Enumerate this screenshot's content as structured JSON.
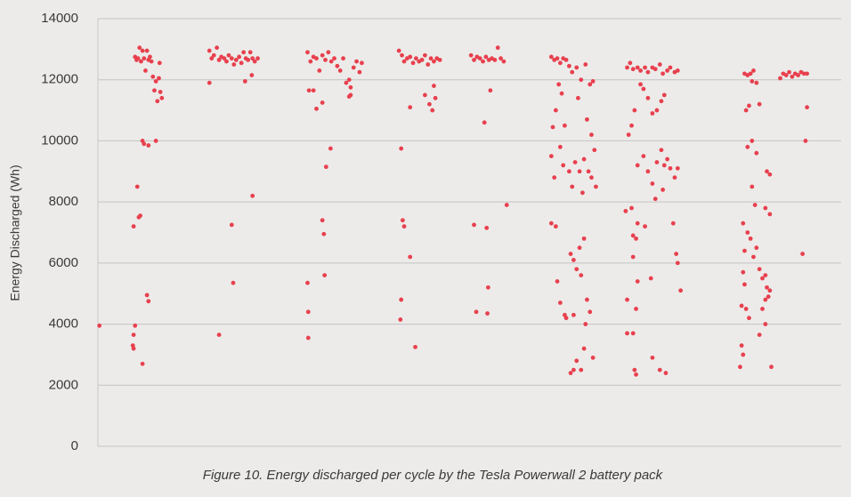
{
  "chart_data": {
    "type": "scatter",
    "y_label": "Energy Discharged (Wh)",
    "caption": "Figure 10. Energy discharged per cycle by the Tesla Powerwall 2 battery pack",
    "color": "#e8404e",
    "grid": true,
    "xlim": [
      0,
      1000
    ],
    "ylim": [
      0,
      14000
    ],
    "yticks": [
      0,
      2000,
      4000,
      6000,
      8000,
      10000,
      12000,
      14000
    ],
    "x": [
      2,
      50,
      52,
      54,
      56,
      58,
      60,
      62,
      64,
      66,
      68,
      70,
      72,
      74,
      76,
      78,
      80,
      82,
      84,
      86,
      83,
      60,
      62,
      68,
      78,
      53,
      55,
      57,
      48,
      66,
      68,
      50,
      48,
      47,
      48,
      60,
      150,
      153,
      156,
      160,
      163,
      166,
      170,
      173,
      176,
      180,
      183,
      186,
      190,
      193,
      196,
      199,
      202,
      205,
      208,
      211,
      215,
      150,
      198,
      207,
      180,
      163,
      182,
      208,
      282,
      286,
      290,
      294,
      298,
      302,
      306,
      310,
      314,
      318,
      322,
      326,
      330,
      334,
      338,
      340,
      344,
      348,
      352,
      355,
      284,
      290,
      294,
      302,
      338,
      340,
      313,
      307,
      302,
      304,
      305,
      282,
      283,
      283,
      405,
      409,
      412,
      416,
      420,
      424,
      428,
      432,
      436,
      440,
      444,
      448,
      452,
      456,
      460,
      420,
      440,
      446,
      450,
      452,
      454,
      408,
      410,
      412,
      420,
      408,
      407,
      427,
      502,
      506,
      510,
      514,
      518,
      522,
      526,
      530,
      534,
      538,
      542,
      546,
      520,
      528,
      550,
      506,
      523,
      525,
      509,
      524,
      610,
      614,
      618,
      622,
      626,
      630,
      634,
      638,
      644,
      650,
      656,
      662,
      666,
      612,
      616,
      620,
      624,
      628,
      646,
      658,
      664,
      668,
      610,
      614,
      622,
      626,
      634,
      638,
      642,
      648,
      652,
      654,
      660,
      664,
      670,
      610,
      616,
      618,
      622,
      628,
      636,
      640,
      644,
      650,
      654,
      658,
      662,
      640,
      656,
      636,
      640,
      644,
      650,
      654,
      666,
      630,
      648,
      712,
      716,
      720,
      726,
      730,
      736,
      740,
      746,
      750,
      756,
      760,
      766,
      770,
      776,
      780,
      714,
      718,
      722,
      730,
      734,
      740,
      746,
      752,
      758,
      762,
      726,
      734,
      740,
      746,
      752,
      758,
      762,
      766,
      770,
      776,
      750,
      760,
      780,
      710,
      718,
      726,
      736,
      720,
      724,
      720,
      726,
      744,
      774,
      778,
      780,
      784,
      712,
      724,
      712,
      720,
      722,
      724,
      746,
      756,
      764,
      870,
      874,
      878,
      882,
      886,
      918,
      922,
      926,
      930,
      934,
      938,
      942,
      946,
      950,
      954,
      880,
      872,
      876,
      880,
      890,
      874,
      886,
      900,
      904,
      880,
      884,
      898,
      904,
      868,
      874,
      878,
      886,
      870,
      882,
      890,
      894,
      898,
      900,
      904,
      898,
      902,
      868,
      870,
      872,
      876,
      866,
      894,
      898,
      890,
      868,
      866,
      864,
      906,
      952,
      954,
      948
    ],
    "values": [
      3950,
      12750,
      12650,
      12700,
      13050,
      12600,
      12950,
      12700,
      12300,
      12950,
      12650,
      12750,
      12600,
      12100,
      11650,
      11950,
      11300,
      12050,
      11600,
      11400,
      12550,
      10000,
      9900,
      9850,
      10000,
      8500,
      7500,
      7550,
      7200,
      4950,
      4750,
      3950,
      3650,
      3300,
      3200,
      2700,
      12950,
      12700,
      12800,
      13050,
      12650,
      12750,
      12700,
      12600,
      12800,
      12700,
      12500,
      12650,
      12750,
      12550,
      12900,
      12700,
      12650,
      12900,
      12700,
      12600,
      12700,
      11900,
      11950,
      12150,
      7250,
      3650,
      5350,
      8200,
      12900,
      12600,
      12750,
      12700,
      12300,
      12800,
      12650,
      12900,
      12600,
      12700,
      12450,
      12300,
      12700,
      11900,
      11450,
      11750,
      12400,
      12600,
      12250,
      12550,
      11650,
      11650,
      11050,
      11250,
      12000,
      11500,
      9750,
      9150,
      7400,
      6950,
      5600,
      5350,
      4400,
      3550,
      12950,
      12800,
      12600,
      12700,
      12750,
      12550,
      12700,
      12600,
      12650,
      12800,
      12500,
      12700,
      12600,
      12700,
      12650,
      11100,
      11500,
      11200,
      11000,
      11800,
      11400,
      9750,
      7400,
      7200,
      6200,
      4800,
      4150,
      3250,
      12800,
      12650,
      12750,
      12700,
      12600,
      12750,
      12650,
      12700,
      12650,
      13050,
      12700,
      12600,
      10600,
      11650,
      7900,
      7250,
      7150,
      5200,
      4400,
      4350,
      12750,
      12650,
      12700,
      12550,
      12700,
      12650,
      12450,
      12250,
      12400,
      12000,
      12500,
      11850,
      11950,
      10450,
      11000,
      11850,
      11550,
      10500,
      11400,
      10700,
      10200,
      9700,
      9500,
      8800,
      9800,
      9200,
      9000,
      8500,
      9300,
      9000,
      8300,
      9400,
      9000,
      8800,
      8500,
      7300,
      7200,
      5400,
      4700,
      4300,
      6300,
      6100,
      5800,
      5600,
      6800,
      4800,
      4400,
      4300,
      4000,
      2400,
      2500,
      2800,
      2500,
      3200,
      2900,
      4200,
      6500,
      12400,
      12550,
      12350,
      12400,
      12300,
      12400,
      12250,
      12400,
      12350,
      12500,
      12200,
      12300,
      12400,
      12250,
      12300,
      10200,
      10500,
      11000,
      11850,
      11700,
      11400,
      10900,
      11000,
      11300,
      11500,
      9200,
      9500,
      9000,
      8600,
      9300,
      9700,
      9200,
      9400,
      9100,
      8800,
      8100,
      8400,
      9100,
      7700,
      7800,
      7300,
      7200,
      6900,
      6800,
      6200,
      5400,
      5500,
      7300,
      6300,
      6000,
      5100,
      4800,
      4500,
      3700,
      3700,
      2500,
      2350,
      2900,
      2500,
      2400,
      12200,
      12150,
      12200,
      12300,
      11900,
      12050,
      12200,
      12150,
      12250,
      12100,
      12200,
      12150,
      12250,
      12200,
      12200,
      11950,
      11000,
      11150,
      10000,
      11200,
      9800,
      9600,
      9000,
      8900,
      8500,
      7900,
      7800,
      7600,
      7300,
      7000,
      6800,
      6500,
      6400,
      6200,
      5800,
      5500,
      5600,
      5200,
      5100,
      4800,
      4900,
      5700,
      5300,
      4500,
      4200,
      4600,
      4500,
      4000,
      3650,
      3000,
      3300,
      2600,
      2600,
      10000,
      11100,
      6300
    ]
  }
}
